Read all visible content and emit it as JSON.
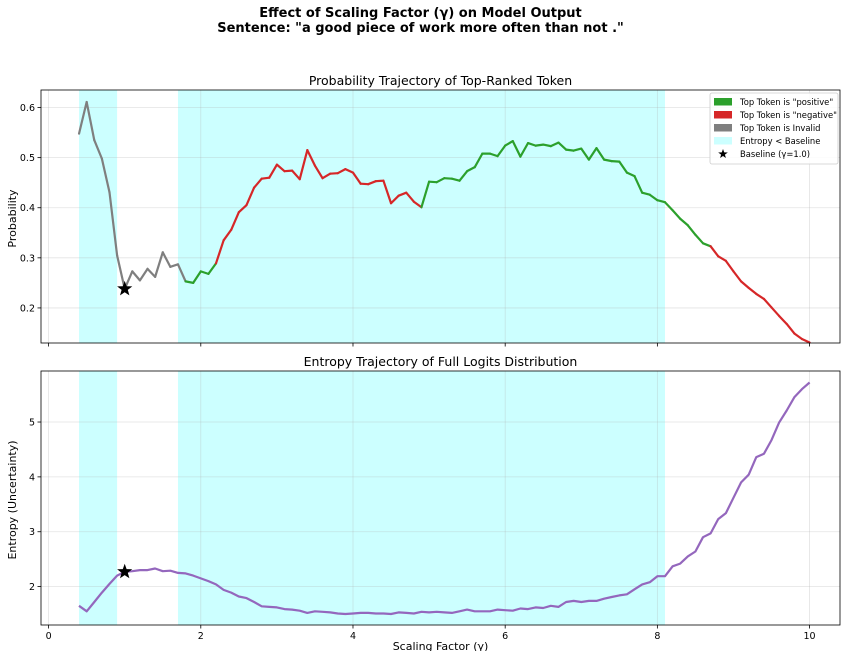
{
  "figure": {
    "suptitle_line1": "Effect of Scaling Factor (γ) on Model Output",
    "suptitle_line2": "Sentence: \"a good piece of work more often than not .\""
  },
  "colors": {
    "positive": "#2ca02c",
    "negative": "#d62728",
    "invalid": "#7f7f7f",
    "entropy_line": "#9467bd",
    "entropy_shade": "#ccffff"
  },
  "chart_data": [
    {
      "type": "line",
      "title": "Probability Trajectory of Top-Ranked Token",
      "xlabel": "",
      "ylabel": "Probability",
      "xlim": [
        -0.1,
        10.4
      ],
      "ylim": [
        0.13,
        0.635
      ],
      "x_ticks": [
        0,
        2,
        4,
        6,
        8,
        10
      ],
      "y_ticks": [
        0.2,
        0.3,
        0.4,
        0.5,
        0.6
      ],
      "y_tick_labels": [
        "0.2",
        "0.3",
        "0.4",
        "0.5",
        "0.6"
      ],
      "grid": true,
      "legend_position": "top-right",
      "legend": [
        {
          "label": "Top Token is \"positive\"",
          "kind": "patch",
          "color": "#2ca02c"
        },
        {
          "label": "Top Token is \"negative\"",
          "kind": "patch",
          "color": "#d62728"
        },
        {
          "label": "Top Token is Invalid",
          "kind": "patch",
          "color": "#7f7f7f"
        },
        {
          "label": "Entropy < Baseline",
          "kind": "patch",
          "color": "#ccffff"
        },
        {
          "label": "Baseline (γ=1.0)",
          "kind": "star",
          "color": "#000000"
        }
      ],
      "shaded_regions": [
        [
          0.4,
          0.9
        ],
        [
          1.7,
          8.1
        ]
      ],
      "baseline": {
        "x": 1.0,
        "y": 0.238
      },
      "x": [
        0.4,
        0.5,
        0.6,
        0.7,
        0.8,
        0.9,
        1.0,
        1.1,
        1.2,
        1.3,
        1.4,
        1.5,
        1.6,
        1.7,
        1.8,
        1.9,
        2.0,
        2.1,
        2.2,
        2.3,
        2.4,
        2.5,
        2.6,
        2.7,
        2.8,
        2.9,
        3.0,
        3.1,
        3.2,
        3.3,
        3.4,
        3.5,
        3.6,
        3.7,
        3.8,
        3.9,
        4.0,
        4.1,
        4.2,
        4.3,
        4.4,
        4.5,
        4.6,
        4.7,
        4.8,
        4.9,
        5.0,
        5.1,
        5.2,
        5.3,
        5.4,
        5.5,
        5.6,
        5.7,
        5.8,
        5.9,
        6.0,
        6.1,
        6.2,
        6.3,
        6.4,
        6.5,
        6.6,
        6.7,
        6.8,
        6.9,
        7.0,
        7.1,
        7.2,
        7.3,
        7.4,
        7.5,
        7.6,
        7.7,
        7.8,
        7.9,
        8.0,
        8.1,
        8.2,
        8.3,
        8.4,
        8.5,
        8.6,
        8.7,
        8.8,
        8.9,
        9.0,
        9.1,
        9.2,
        9.3,
        9.4,
        9.5,
        9.6,
        9.7,
        9.8,
        9.9,
        10.0
      ],
      "y": [
        0.548,
        0.611,
        0.535,
        0.498,
        0.431,
        0.305,
        0.238,
        0.273,
        0.255,
        0.278,
        0.262,
        0.311,
        0.282,
        0.287,
        0.253,
        0.25,
        0.273,
        0.268,
        0.289,
        0.335,
        0.356,
        0.391,
        0.405,
        0.44,
        0.458,
        0.46,
        0.486,
        0.473,
        0.474,
        0.457,
        0.515,
        0.484,
        0.459,
        0.468,
        0.469,
        0.477,
        0.47,
        0.448,
        0.447,
        0.453,
        0.454,
        0.409,
        0.424,
        0.43,
        0.412,
        0.401,
        0.452,
        0.451,
        0.459,
        0.458,
        0.454,
        0.473,
        0.481,
        0.508,
        0.508,
        0.503,
        0.524,
        0.533,
        0.502,
        0.529,
        0.524,
        0.526,
        0.523,
        0.53,
        0.516,
        0.514,
        0.518,
        0.496,
        0.519,
        0.496,
        0.493,
        0.492,
        0.47,
        0.463,
        0.43,
        0.426,
        0.415,
        0.411,
        0.395,
        0.378,
        0.365,
        0.346,
        0.329,
        0.323,
        0.303,
        0.294,
        0.273,
        0.253,
        0.24,
        0.228,
        0.218,
        0.201,
        0.184,
        0.168,
        0.149,
        0.138,
        0.131
      ],
      "top_token": [
        "invalid",
        "invalid",
        "invalid",
        "invalid",
        "invalid",
        "invalid",
        "invalid",
        "invalid",
        "invalid",
        "invalid",
        "invalid",
        "invalid",
        "invalid",
        "invalid",
        "invalid",
        "positive",
        "positive",
        "positive",
        "positive",
        "negative",
        "negative",
        "negative",
        "negative",
        "negative",
        "negative",
        "negative",
        "negative",
        "negative",
        "negative",
        "negative",
        "negative",
        "negative",
        "negative",
        "negative",
        "negative",
        "negative",
        "negative",
        "negative",
        "negative",
        "negative",
        "negative",
        "negative",
        "negative",
        "negative",
        "negative",
        "negative",
        "positive",
        "positive",
        "positive",
        "positive",
        "positive",
        "positive",
        "positive",
        "positive",
        "positive",
        "positive",
        "positive",
        "positive",
        "positive",
        "positive",
        "positive",
        "positive",
        "positive",
        "positive",
        "positive",
        "positive",
        "positive",
        "positive",
        "positive",
        "positive",
        "positive",
        "positive",
        "positive",
        "positive",
        "positive",
        "positive",
        "positive",
        "positive",
        "positive",
        "positive",
        "positive",
        "positive",
        "positive",
        "positive",
        "negative",
        "negative",
        "negative",
        "negative",
        "negative",
        "negative",
        "negative",
        "negative",
        "negative",
        "negative",
        "negative",
        "negative",
        "negative"
      ]
    },
    {
      "type": "line",
      "title": "Entropy Trajectory of Full Logits Distribution",
      "xlabel": "Scaling Factor (γ)",
      "ylabel": "Entropy (Uncertainty)",
      "xlim": [
        -0.1,
        10.4
      ],
      "ylim": [
        1.3,
        5.93
      ],
      "x_ticks": [
        0,
        2,
        4,
        6,
        8,
        10
      ],
      "x_tick_labels": [
        "0",
        "2",
        "4",
        "6",
        "8",
        "10"
      ],
      "y_ticks": [
        2,
        3,
        4,
        5
      ],
      "y_tick_labels": [
        "2",
        "3",
        "4",
        "5"
      ],
      "grid": true,
      "shaded_regions": [
        [
          0.4,
          0.9
        ],
        [
          1.7,
          8.1
        ]
      ],
      "baseline": {
        "x": 1.0,
        "y": 2.27
      },
      "x": [
        0.4,
        0.5,
        0.6,
        0.7,
        0.8,
        0.9,
        1.0,
        1.1,
        1.2,
        1.3,
        1.4,
        1.5,
        1.6,
        1.7,
        1.8,
        1.9,
        2.0,
        2.1,
        2.2,
        2.3,
        2.4,
        2.5,
        2.6,
        2.7,
        2.8,
        2.9,
        3.0,
        3.1,
        3.2,
        3.3,
        3.4,
        3.5,
        3.6,
        3.7,
        3.8,
        3.9,
        4.0,
        4.1,
        4.2,
        4.3,
        4.4,
        4.5,
        4.6,
        4.7,
        4.8,
        4.9,
        5.0,
        5.1,
        5.2,
        5.3,
        5.4,
        5.5,
        5.6,
        5.7,
        5.8,
        5.9,
        6.0,
        6.1,
        6.2,
        6.3,
        6.4,
        6.5,
        6.6,
        6.7,
        6.8,
        6.9,
        7.0,
        7.1,
        7.2,
        7.3,
        7.4,
        7.5,
        7.6,
        7.7,
        7.8,
        7.9,
        8.0,
        8.1,
        8.2,
        8.3,
        8.4,
        8.5,
        8.6,
        8.7,
        8.8,
        8.9,
        9.0,
        9.1,
        9.2,
        9.3,
        9.4,
        9.5,
        9.6,
        9.7,
        9.8,
        9.9,
        10.0
      ],
      "y": [
        1.65,
        1.55,
        1.72,
        1.89,
        2.05,
        2.2,
        2.27,
        2.28,
        2.3,
        2.3,
        2.33,
        2.28,
        2.29,
        2.25,
        2.24,
        2.2,
        2.15,
        2.1,
        2.04,
        1.94,
        1.89,
        1.82,
        1.79,
        1.72,
        1.64,
        1.63,
        1.62,
        1.59,
        1.58,
        1.56,
        1.52,
        1.55,
        1.54,
        1.53,
        1.51,
        1.5,
        1.51,
        1.52,
        1.52,
        1.51,
        1.51,
        1.5,
        1.53,
        1.52,
        1.51,
        1.54,
        1.53,
        1.54,
        1.53,
        1.52,
        1.55,
        1.58,
        1.55,
        1.55,
        1.55,
        1.58,
        1.57,
        1.56,
        1.6,
        1.59,
        1.62,
        1.61,
        1.65,
        1.63,
        1.72,
        1.74,
        1.72,
        1.74,
        1.74,
        1.78,
        1.81,
        1.84,
        1.86,
        1.95,
        2.04,
        2.08,
        2.19,
        2.19,
        2.37,
        2.42,
        2.55,
        2.64,
        2.9,
        2.97,
        3.23,
        3.34,
        3.62,
        3.9,
        4.04,
        4.36,
        4.42,
        4.67,
        4.99,
        5.21,
        5.45,
        5.6,
        5.72
      ]
    }
  ]
}
